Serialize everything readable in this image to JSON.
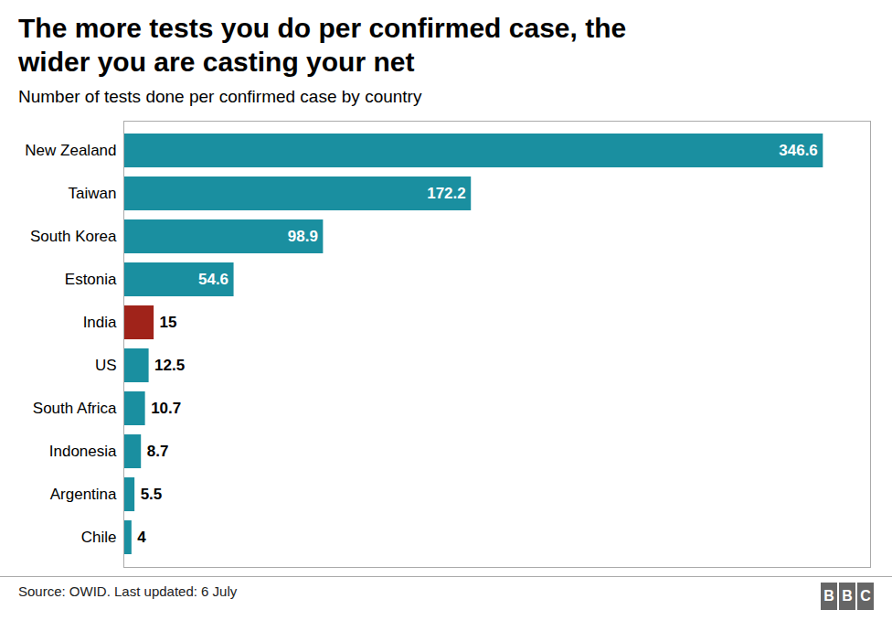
{
  "chart_data": {
    "type": "bar",
    "orientation": "horizontal",
    "title": "The more tests you do per confirmed case, the\nwider you are casting your net",
    "subtitle": "Number of tests done per confirmed case by country",
    "source": "Source: OWID. Last updated: 6 July",
    "logo": "BBC",
    "categories": [
      "New Zealand",
      "Taiwan",
      "South Korea",
      "Estonia",
      "India",
      "US",
      "South Africa",
      "Indonesia",
      "Argentina",
      "Chile"
    ],
    "values": [
      346.6,
      172.2,
      98.9,
      54.6,
      15,
      12.5,
      10.7,
      8.7,
      5.5,
      4
    ],
    "colors": [
      "#1a8fa0",
      "#1a8fa0",
      "#1a8fa0",
      "#1a8fa0",
      "#a0231a",
      "#1a8fa0",
      "#1a8fa0",
      "#1a8fa0",
      "#1a8fa0",
      "#1a8fa0"
    ],
    "xlim": [
      0,
      370
    ],
    "data_labels": true,
    "tick_labels": "y",
    "grid": false
  }
}
